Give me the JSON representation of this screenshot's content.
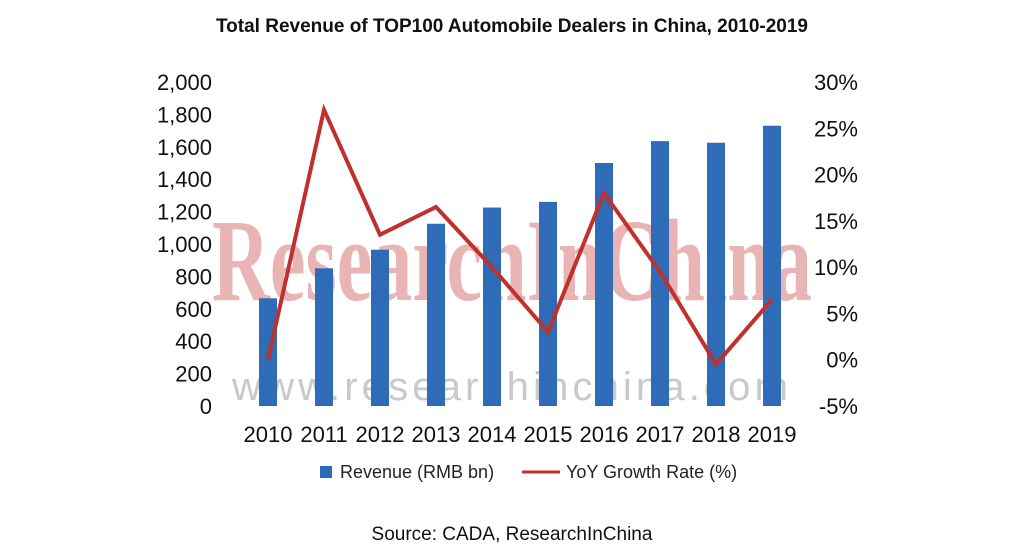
{
  "chart_data": {
    "type": "bar",
    "title": "Total Revenue of TOP100 Automobile Dealers in China, 2010-2019",
    "categories": [
      "2010",
      "2011",
      "2012",
      "2013",
      "2014",
      "2015",
      "2016",
      "2017",
      "2018",
      "2019"
    ],
    "series": [
      {
        "name": "Revenue (RMB bn)",
        "type": "bar",
        "axis": "left",
        "values": [
          665,
          850,
          965,
          1125,
          1225,
          1260,
          1500,
          1635,
          1625,
          1730
        ]
      },
      {
        "name": "YoY Growth Rate (%)",
        "type": "line",
        "axis": "right",
        "values": [
          0,
          27,
          13.5,
          16.5,
          10,
          3,
          18,
          9.5,
          -0.5,
          6.5
        ]
      }
    ],
    "y_left": {
      "ylim": [
        0,
        2000
      ],
      "ticks": [
        "0",
        "200",
        "400",
        "600",
        "800",
        "1,000",
        "1,200",
        "1,400",
        "1,600",
        "1,800",
        "2,000"
      ]
    },
    "y_right": {
      "ylim": [
        -5,
        30
      ],
      "ticks": [
        "-5%",
        "0%",
        "5%",
        "10%",
        "15%",
        "20%",
        "25%",
        "30%"
      ]
    },
    "legend_position": "bottom",
    "grid": false
  },
  "source": "Source: CADA, ResearchInChina",
  "watermark": {
    "brand": "ResearchInChina",
    "url": "www.researchinchina.com"
  },
  "colors": {
    "bar": "#2e6cb8",
    "line": "#c0312e",
    "watermark_brand": "#e8b4b4",
    "watermark_url": "#c9c9c9"
  }
}
